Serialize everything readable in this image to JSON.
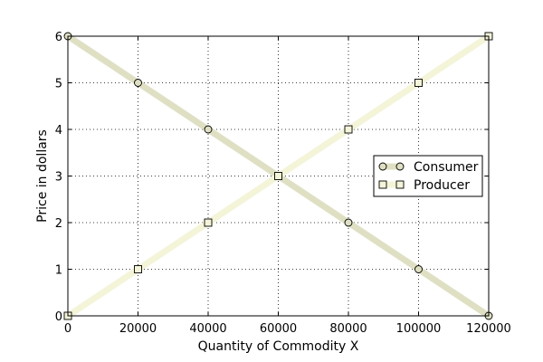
{
  "chart_data": {
    "type": "line",
    "title": "",
    "xlabel": "Quantity of Commodity X",
    "ylabel": "Price in dollars",
    "xlim": [
      0,
      120000
    ],
    "ylim": [
      0,
      6
    ],
    "xticks": [
      0,
      20000,
      40000,
      60000,
      80000,
      100000,
      120000
    ],
    "yticks": [
      0,
      1,
      2,
      3,
      4,
      5,
      6
    ],
    "grid": true,
    "legend_position": "right",
    "series": [
      {
        "name": "Consumer",
        "marker": "circle",
        "color": "#dfe0c3",
        "x": [
          0,
          20000,
          40000,
          60000,
          80000,
          100000,
          120000
        ],
        "y": [
          6,
          5,
          4,
          3,
          2,
          1,
          0
        ]
      },
      {
        "name": "Producer",
        "marker": "square",
        "color": "#f4f4d9",
        "x": [
          0,
          20000,
          40000,
          60000,
          80000,
          100000,
          120000
        ],
        "y": [
          0,
          1,
          2,
          3,
          4,
          5,
          6
        ]
      }
    ]
  }
}
